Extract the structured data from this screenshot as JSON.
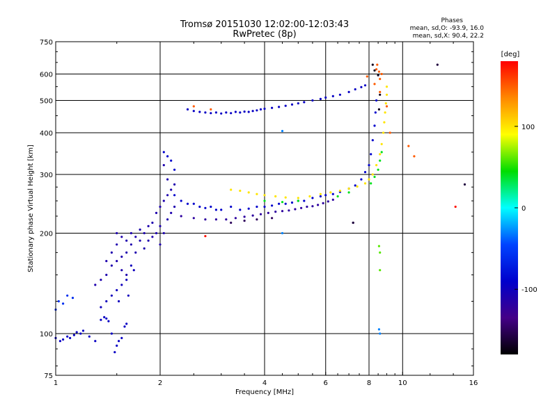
{
  "chart_data": {
    "type": "scatter",
    "title": "Tromsø 20151030 12:02:00-12:03:43",
    "subtitle": "RwPretec (8p)",
    "stats": {
      "heading": "Phases",
      "line_o": "mean, sd,O: -93.9, 16.0",
      "line_x": "mean, sd,X:  90.4, 22.2"
    },
    "xlabel": "Frequency [MHz]",
    "ylabel": "Stationary phase Virtual Height [km]",
    "x_scale": "log",
    "y_scale": "log",
    "xlim": [
      1,
      16
    ],
    "ylim": [
      75,
      750
    ],
    "x_ticks": [
      1,
      2,
      4,
      6,
      8,
      10,
      16
    ],
    "x_tick_labels": [
      "1",
      "2",
      "4",
      "6",
      "8",
      "10",
      "16"
    ],
    "y_ticks": [
      75,
      100,
      200,
      300,
      400,
      500,
      600,
      750
    ],
    "y_tick_labels": [
      "75",
      "100",
      "200",
      "300",
      "400",
      "500",
      "600",
      "750"
    ],
    "x_grid": [
      2,
      4,
      6,
      8,
      10
    ],
    "y_grid": [
      100,
      200,
      300,
      400,
      500,
      600
    ],
    "grid": true,
    "colorbar": {
      "label": "[deg]",
      "range": [
        -180,
        180
      ],
      "ticks": [
        100,
        0,
        -100
      ],
      "tick_labels": [
        "100",
        "0",
        "-100"
      ],
      "colors": [
        "#ff0000",
        "#ff8800",
        "#ffff00",
        "#00dd00",
        "#00ffff",
        "#0044ff",
        "#0000cc",
        "#440088",
        "#000000"
      ]
    },
    "series": [
      {
        "phase": -95,
        "points": [
          [
            1.0,
            97
          ],
          [
            1.03,
            95
          ],
          [
            1.05,
            96
          ],
          [
            1.08,
            98
          ],
          [
            1.1,
            97
          ],
          [
            1.13,
            99
          ],
          [
            1.15,
            101
          ],
          [
            1.18,
            100
          ],
          [
            1.2,
            102
          ],
          [
            1.25,
            98
          ],
          [
            1.3,
            95
          ],
          [
            1.35,
            110
          ],
          [
            1.38,
            112
          ],
          [
            1.4,
            111
          ],
          [
            1.42,
            109
          ],
          [
            1.45,
            100
          ],
          [
            1.48,
            88
          ],
          [
            1.5,
            92
          ],
          [
            1.52,
            95
          ],
          [
            1.55,
            97
          ],
          [
            1.58,
            105
          ],
          [
            1.6,
            107
          ]
        ]
      },
      {
        "phase": -60,
        "points": [
          [
            1.0,
            118
          ],
          [
            1.02,
            125
          ],
          [
            1.05,
            123
          ],
          [
            1.08,
            130
          ],
          [
            1.12,
            128
          ]
        ]
      },
      {
        "phase": -110,
        "points": [
          [
            1.3,
            140
          ],
          [
            1.35,
            145
          ],
          [
            1.4,
            150
          ],
          [
            1.4,
            165
          ],
          [
            1.45,
            160
          ],
          [
            1.45,
            175
          ],
          [
            1.5,
            165
          ],
          [
            1.5,
            185
          ],
          [
            1.5,
            200
          ],
          [
            1.55,
            155
          ],
          [
            1.55,
            170
          ],
          [
            1.55,
            195
          ],
          [
            1.6,
            150
          ],
          [
            1.6,
            175
          ],
          [
            1.6,
            190
          ],
          [
            1.65,
            185
          ],
          [
            1.65,
            200
          ],
          [
            1.7,
            175
          ],
          [
            1.7,
            195
          ],
          [
            1.75,
            190
          ],
          [
            1.75,
            205
          ],
          [
            1.8,
            180
          ],
          [
            1.8,
            200
          ],
          [
            1.85,
            190
          ],
          [
            1.85,
            210
          ],
          [
            1.9,
            195
          ],
          [
            1.9,
            215
          ],
          [
            1.95,
            200
          ],
          [
            1.95,
            230
          ],
          [
            2.0,
            185
          ],
          [
            2.0,
            210
          ],
          [
            2.0,
            240
          ],
          [
            2.05,
            200
          ],
          [
            2.05,
            250
          ],
          [
            2.05,
            320
          ],
          [
            2.1,
            220
          ],
          [
            2.1,
            260
          ],
          [
            2.1,
            290
          ],
          [
            2.15,
            230
          ],
          [
            2.15,
            270
          ],
          [
            2.2,
            240
          ],
          [
            2.2,
            280
          ]
        ]
      },
      {
        "phase": -100,
        "points": [
          [
            1.35,
            120
          ],
          [
            1.4,
            125
          ],
          [
            1.45,
            130
          ],
          [
            1.5,
            135
          ],
          [
            1.52,
            125
          ],
          [
            1.55,
            140
          ],
          [
            1.6,
            145
          ],
          [
            1.62,
            130
          ],
          [
            1.65,
            160
          ],
          [
            1.68,
            155
          ]
        ]
      },
      {
        "phase": -90,
        "points": [
          [
            2.05,
            350
          ],
          [
            2.1,
            340
          ],
          [
            2.15,
            330
          ],
          [
            2.2,
            310
          ],
          [
            2.2,
            260
          ],
          [
            2.3,
            250
          ],
          [
            2.4,
            245
          ],
          [
            2.5,
            245
          ],
          [
            2.6,
            240
          ],
          [
            2.7,
            238
          ],
          [
            2.8,
            240
          ],
          [
            2.9,
            235
          ],
          [
            3.0,
            235
          ],
          [
            3.2,
            240
          ],
          [
            3.4,
            235
          ],
          [
            3.6,
            237
          ],
          [
            3.8,
            240
          ],
          [
            4.0,
            240
          ],
          [
            4.2,
            242
          ],
          [
            4.4,
            245
          ],
          [
            4.6,
            245
          ],
          [
            4.8,
            247
          ],
          [
            5.0,
            250
          ],
          [
            5.2,
            250
          ],
          [
            5.5,
            255
          ],
          [
            5.8,
            258
          ],
          [
            6.0,
            260
          ],
          [
            6.3,
            262
          ],
          [
            6.6,
            266
          ],
          [
            7.0,
            272
          ],
          [
            7.3,
            278
          ],
          [
            7.6,
            290
          ],
          [
            7.8,
            305
          ],
          [
            8.0,
            320
          ],
          [
            8.1,
            345
          ],
          [
            8.2,
            380
          ],
          [
            8.3,
            420
          ],
          [
            8.35,
            460
          ],
          [
            8.4,
            500
          ]
        ]
      },
      {
        "phase": -120,
        "points": [
          [
            2.3,
            225
          ],
          [
            2.5,
            222
          ],
          [
            2.7,
            220
          ],
          [
            2.9,
            220
          ],
          [
            3.1,
            220
          ],
          [
            3.3,
            222
          ],
          [
            3.5,
            224
          ],
          [
            3.7,
            226
          ],
          [
            3.9,
            228
          ],
          [
            4.1,
            230
          ],
          [
            4.3,
            232
          ],
          [
            4.5,
            233
          ],
          [
            4.7,
            234
          ],
          [
            4.9,
            236
          ],
          [
            5.1,
            238
          ],
          [
            5.3,
            240
          ],
          [
            5.5,
            241
          ],
          [
            5.7,
            243
          ],
          [
            5.9,
            246
          ],
          [
            6.1,
            249
          ],
          [
            6.3,
            252
          ]
        ]
      },
      {
        "phase": -150,
        "points": [
          [
            3.2,
            215
          ],
          [
            3.5,
            218
          ],
          [
            3.8,
            220
          ],
          [
            4.2,
            222
          ],
          [
            7.2,
            215
          ]
        ]
      },
      {
        "phase": -95,
        "points": [
          [
            2.4,
            470
          ],
          [
            2.5,
            465
          ],
          [
            2.6,
            462
          ],
          [
            2.7,
            460
          ],
          [
            2.8,
            458
          ],
          [
            2.9,
            460
          ],
          [
            3.0,
            457
          ],
          [
            3.1,
            460
          ],
          [
            3.2,
            458
          ],
          [
            3.3,
            462
          ],
          [
            3.4,
            460
          ],
          [
            3.5,
            463
          ],
          [
            3.6,
            462
          ],
          [
            3.7,
            465
          ],
          [
            3.8,
            467
          ],
          [
            3.9,
            470
          ],
          [
            4.0,
            472
          ],
          [
            4.2,
            475
          ],
          [
            4.4,
            478
          ],
          [
            4.6,
            482
          ],
          [
            4.8,
            486
          ],
          [
            5.0,
            490
          ],
          [
            5.2,
            494
          ],
          [
            5.5,
            500
          ],
          [
            5.8,
            505
          ],
          [
            6.0,
            510
          ],
          [
            6.3,
            515
          ],
          [
            6.6,
            520
          ],
          [
            7.0,
            530
          ],
          [
            7.3,
            540
          ],
          [
            7.6,
            548
          ],
          [
            7.8,
            555
          ]
        ]
      },
      {
        "phase": 100,
        "points": [
          [
            3.2,
            270
          ],
          [
            3.4,
            268
          ],
          [
            3.6,
            265
          ],
          [
            3.8,
            262
          ],
          [
            4.0,
            260
          ],
          [
            4.3,
            258
          ],
          [
            4.6,
            256
          ],
          [
            5.0,
            255
          ],
          [
            5.4,
            258
          ],
          [
            5.8,
            262
          ],
          [
            6.2,
            265
          ],
          [
            6.6,
            268
          ],
          [
            7.0,
            272
          ],
          [
            7.4,
            276
          ],
          [
            7.8,
            282
          ],
          [
            8.0,
            290
          ],
          [
            8.2,
            300
          ],
          [
            8.4,
            320
          ],
          [
            8.6,
            345
          ],
          [
            8.7,
            370
          ],
          [
            8.8,
            400
          ],
          [
            8.85,
            430
          ],
          [
            8.9,
            460
          ],
          [
            8.95,
            490
          ],
          [
            9.0,
            520
          ],
          [
            9.0,
            550
          ]
        ]
      },
      {
        "phase": 40,
        "points": [
          [
            4.0,
            250
          ],
          [
            4.5,
            248
          ],
          [
            5.0,
            250
          ],
          [
            6.5,
            258
          ],
          [
            7.0,
            265
          ],
          [
            8.1,
            282
          ],
          [
            8.3,
            295
          ],
          [
            8.5,
            310
          ],
          [
            8.6,
            330
          ],
          [
            8.7,
            350
          ]
        ]
      },
      {
        "phase": 150,
        "points": [
          [
            2.5,
            480
          ],
          [
            2.8,
            470
          ],
          [
            7.9,
            590
          ],
          [
            8.3,
            560
          ],
          [
            8.4,
            620
          ],
          [
            8.45,
            640
          ],
          [
            8.55,
            610
          ],
          [
            8.6,
            580
          ],
          [
            8.6,
            530
          ],
          [
            8.7,
            600
          ],
          [
            9.0,
            480
          ],
          [
            9.2,
            400
          ],
          [
            10.4,
            365
          ],
          [
            10.8,
            340
          ]
        ]
      },
      {
        "phase": -170,
        "points": [
          [
            8.2,
            640
          ],
          [
            8.3,
            615
          ],
          [
            8.5,
            595
          ],
          [
            8.55,
            470
          ],
          [
            8.6,
            520
          ]
        ]
      },
      {
        "phase": 175,
        "points": [
          [
            2.7,
            196
          ],
          [
            14.2,
            240
          ]
        ]
      },
      {
        "phase": 60,
        "points": [
          [
            8.55,
            183
          ],
          [
            8.6,
            175
          ],
          [
            8.6,
            155
          ]
        ]
      },
      {
        "phase": -30,
        "points": [
          [
            8.55,
            103
          ],
          [
            8.6,
            100
          ],
          [
            4.5,
            200
          ],
          [
            4.5,
            405
          ]
        ]
      },
      {
        "phase": -160,
        "points": [
          [
            12.6,
            640
          ],
          [
            15.1,
            280
          ],
          [
            7.2,
            215
          ]
        ]
      }
    ]
  }
}
